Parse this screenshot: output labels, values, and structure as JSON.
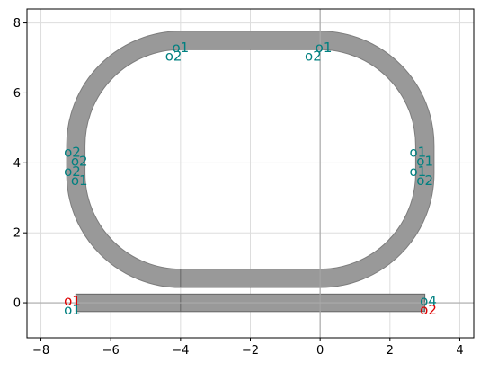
{
  "plot": {
    "xlim": [
      -8.4,
      4.4
    ],
    "ylim": [
      -1.0,
      8.4
    ],
    "x_ticks": [
      -8,
      -6,
      -4,
      -2,
      0,
      2,
      4
    ],
    "y_ticks": [
      0,
      2,
      4,
      6,
      8
    ],
    "x_tick_labels": [
      "−8",
      "−6",
      "−4",
      "−2",
      "0",
      "2",
      "4"
    ],
    "y_tick_labels": [
      "0",
      "2",
      "4",
      "6",
      "8"
    ],
    "grid": true,
    "colors": {
      "waveguide_fill": "#999999",
      "waveguide_edge": "#666666",
      "port_teal": "#008080",
      "port_red": "#dd0000",
      "grid": "#dddddd",
      "axis_line": "#aaaaaa"
    }
  },
  "geometry": {
    "ring_center_y": 4.0,
    "ring_straight_x": [
      -4.0,
      0.0
    ],
    "ring_corner_radius": 3.0,
    "ring_top_y": 7.5,
    "ring_bottom_y": 0.7,
    "ring_left_x": -7.0,
    "ring_right_x": 3.0,
    "waveguide_width": 0.5,
    "bus_x": [
      -7.0,
      3.0
    ],
    "bus_y": 0.0,
    "bus_width": 0.5
  },
  "ports": [
    {
      "label": "o1",
      "x": -7.1,
      "y": 0.05,
      "color": "red"
    },
    {
      "label": "o1",
      "x": -7.1,
      "y": -0.2,
      "color": "teal"
    },
    {
      "label": "o4",
      "x": 3.1,
      "y": 0.05,
      "color": "teal"
    },
    {
      "label": "o2",
      "x": 3.1,
      "y": -0.2,
      "color": "red"
    },
    {
      "label": "o2",
      "x": -7.1,
      "y": 4.3,
      "color": "teal"
    },
    {
      "label": "o2",
      "x": -6.9,
      "y": 4.05,
      "color": "teal"
    },
    {
      "label": "o2",
      "x": -7.1,
      "y": 3.75,
      "color": "teal"
    },
    {
      "label": "o1",
      "x": -6.9,
      "y": 3.5,
      "color": "teal"
    },
    {
      "label": "o1",
      "x": 2.8,
      "y": 4.3,
      "color": "teal"
    },
    {
      "label": "o1",
      "x": 3.0,
      "y": 4.05,
      "color": "teal"
    },
    {
      "label": "o1",
      "x": 2.8,
      "y": 3.75,
      "color": "teal"
    },
    {
      "label": "o2",
      "x": 3.0,
      "y": 3.5,
      "color": "teal"
    },
    {
      "label": "o1",
      "x": -4.0,
      "y": 7.3,
      "color": "teal"
    },
    {
      "label": "o2",
      "x": -4.2,
      "y": 7.05,
      "color": "teal"
    },
    {
      "label": "o1",
      "x": 0.1,
      "y": 7.3,
      "color": "teal"
    },
    {
      "label": "o2",
      "x": -0.2,
      "y": 7.05,
      "color": "teal"
    }
  ]
}
